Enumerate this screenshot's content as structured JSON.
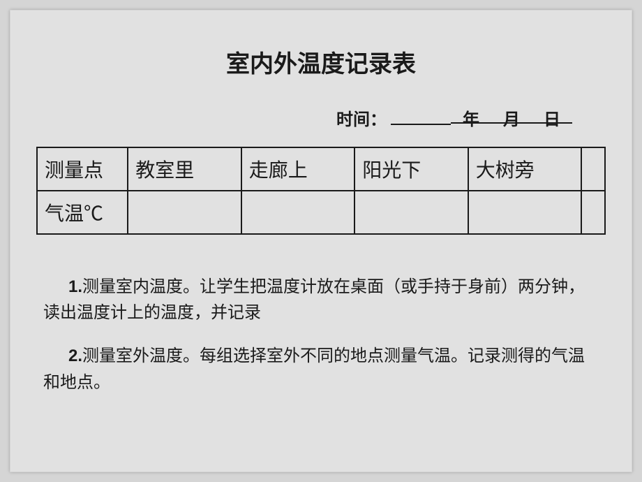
{
  "title": "室内外温度记录表",
  "date": {
    "label": "时间：",
    "year_unit": "年",
    "month_unit": "月",
    "day_unit": "日"
  },
  "table": {
    "row1": {
      "header": "测量点",
      "c1": "教室里",
      "c2": "走廊上",
      "c3": "阳光下",
      "c4": "大树旁",
      "c5": ""
    },
    "row2": {
      "header": "气温℃",
      "c1": "",
      "c2": "",
      "c3": "",
      "c4": "",
      "c5": ""
    }
  },
  "instructions": {
    "item1_num": "1.",
    "item1_text": "测量室内温度。让学生把温度计放在桌面（或手持于身前）两分钟，读出温度计上的温度，并记录",
    "item2_num": "2.",
    "item2_text": "测量室外温度。每组选择室外不同的地点测量气温。记录测得的气温和地点。"
  }
}
